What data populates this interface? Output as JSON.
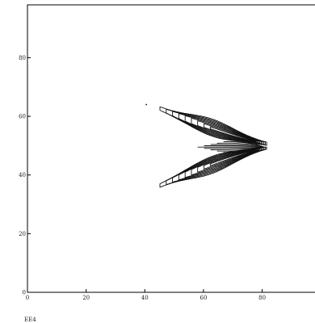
{
  "chart_data": {
    "type": "contour",
    "title": "",
    "xlabel": "",
    "ylabel": "",
    "caption": "EE4",
    "xlim": [
      0,
      98
    ],
    "ylim": [
      0,
      98
    ],
    "xticks": [
      0,
      20,
      40,
      60,
      80
    ],
    "yticks": [
      0,
      20,
      40,
      60,
      80
    ],
    "grid": false,
    "line_color": "#111111",
    "wings": [
      {
        "name": "upper-lobe",
        "tip": [
          82,
          50.5
        ],
        "end": [
          43,
          63.5
        ],
        "inner_edge": 49.5,
        "hump_center": 63,
        "hump_width": 11,
        "max_thickness": 6.5,
        "min_thickness": 0.9
      },
      {
        "name": "lower-lobe",
        "tip": [
          82,
          49.5
        ],
        "end": [
          43,
          35.5
        ],
        "inner_edge": 49.5,
        "hump_center": 63,
        "hump_width": 11,
        "max_thickness": 6.5,
        "min_thickness": 0.9
      }
    ],
    "contour_levels": [
      0.1,
      0.2,
      0.3,
      0.4,
      0.5,
      0.6,
      0.7,
      0.8,
      0.9
    ],
    "isolated_points": [
      [
        40.5,
        64
      ]
    ]
  }
}
